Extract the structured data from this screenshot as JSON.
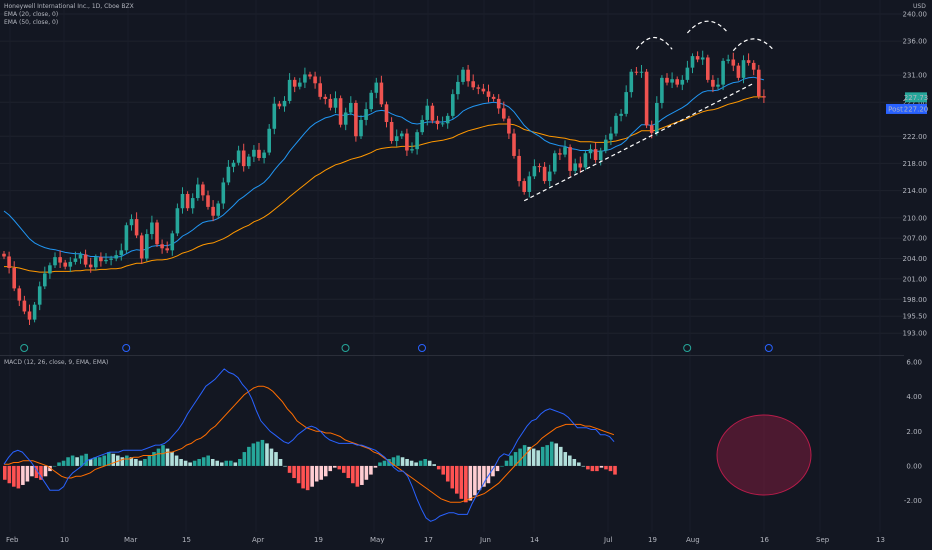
{
  "legend": {
    "title": "Honeywell International Inc., 1D, Cboe BZX",
    "ema_fast": "EMA (20, close, 0)",
    "ema_slow": "EMA (50, close, 0)",
    "macd": "MACD (12, 26, close, 9, EMA, EMA)"
  },
  "currency": "USD",
  "price_tags": {
    "last": "227.73",
    "post_label": "Post",
    "post": "227.20"
  },
  "colors": {
    "background": "#131722",
    "up": "#26a69a",
    "down": "#ef5350",
    "ema_fast": "#2196f3",
    "ema_slow": "#ff9800",
    "macd_line": "#2962ff",
    "signal_line": "#ff6d00",
    "hist_up_strong": "#26a69a",
    "hist_up_weak": "#b2dfdb",
    "hist_down_strong": "#ff5252",
    "hist_down_weak": "#ffcdd2",
    "highlight": "#b71c4a"
  },
  "chart_data": [
    {
      "type": "candlestick",
      "title": "Honeywell International Inc., 1D, Cboe BZX",
      "price_axis_ticks": [
        "240.00",
        "236.00",
        "231.00",
        "227.00",
        "222.00",
        "218.00",
        "214.00",
        "210.00",
        "207.00",
        "204.00",
        "201.00",
        "198.00",
        "195.50",
        "193.00"
      ],
      "ylim": [
        192,
        240
      ],
      "x_ticks": [
        "Feb",
        "10",
        "Mar",
        "15",
        "Apr",
        "19",
        "May",
        "17",
        "Jun",
        "14",
        "Jul",
        "19",
        "Aug",
        "16",
        "Sep",
        "13"
      ],
      "closes": [
        204.3,
        202.6,
        199.6,
        197.8,
        196.2,
        195.0,
        197.2,
        199.9,
        201.8,
        203.0,
        204.2,
        203.4,
        202.8,
        203.5,
        204.0,
        204.6,
        203.1,
        202.7,
        204.2,
        203.6,
        203.8,
        204.0,
        204.5,
        205.2,
        208.9,
        209.8,
        207.4,
        204.0,
        207.6,
        209.3,
        206.1,
        205.5,
        205.2,
        207.7,
        211.4,
        213.5,
        211.4,
        212.9,
        214.9,
        213.3,
        211.6,
        210.3,
        212.1,
        215.2,
        217.5,
        218.1,
        219.9,
        217.6,
        219.0,
        220.0,
        218.8,
        219.6,
        223.1,
        226.8,
        226.4,
        227.2,
        230.3,
        229.3,
        229.9,
        231.1,
        230.8,
        229.8,
        227.8,
        227.5,
        226.2,
        227.6,
        223.7,
        225.5,
        226.9,
        222.0,
        224.4,
        226.0,
        228.4,
        229.9,
        226.7,
        224.1,
        221.3,
        222.0,
        222.4,
        219.9,
        220.1,
        222.6,
        224.4,
        226.5,
        224.3,
        223.8,
        223.9,
        225.0,
        228.2,
        230.0,
        231.8,
        230.1,
        229.2,
        229.0,
        228.6,
        227.8,
        227.5,
        226.1,
        224.6,
        222.4,
        219.1,
        215.4,
        213.8,
        216.1,
        217.6,
        217.5,
        215.4,
        216.8,
        219.5,
        219.3,
        220.4,
        216.9,
        218.0,
        217.4,
        219.5,
        220.1,
        218.5,
        219.9,
        221.5,
        222.4,
        225.0,
        225.3,
        228.5,
        231.5,
        231.4,
        231.5,
        223.6,
        222.5,
        226.9,
        230.6,
        229.9,
        230.4,
        229.6,
        230.3,
        232.1,
        233.8,
        233.3,
        233.6,
        230.3,
        229.3,
        229.6,
        233.1,
        233.3,
        232.4,
        230.6,
        233.2,
        232.8,
        231.8,
        227.9,
        227.7
      ],
      "ema_20": [
        211.0,
        210.4,
        209.6,
        208.7,
        207.8,
        206.9,
        206.3,
        205.9,
        205.6,
        205.4,
        205.3,
        205.1,
        204.9,
        204.8,
        204.7,
        204.7,
        204.5,
        204.3,
        204.3,
        204.2,
        204.2,
        204.2,
        204.2,
        204.3,
        204.7,
        205.1,
        205.3,
        205.2,
        205.4,
        205.8,
        205.9,
        205.9,
        205.9,
        206.1,
        206.6,
        207.3,
        207.7,
        208.2,
        208.8,
        209.3,
        209.5,
        209.6,
        209.9,
        210.4,
        211.1,
        211.8,
        212.6,
        213.1,
        213.7,
        214.3,
        214.7,
        215.2,
        216.0,
        217.0,
        217.9,
        218.7,
        219.8,
        220.7,
        221.6,
        222.5,
        223.3,
        223.9,
        224.3,
        224.7,
        224.9,
        225.2,
        225.1,
        225.1,
        225.3,
        225.0,
        224.9,
        225.0,
        225.3,
        225.7,
        225.8,
        225.7,
        225.3,
        225.0,
        224.8,
        224.3,
        223.9,
        223.8,
        223.9,
        224.1,
        224.1,
        224.1,
        224.1,
        224.2,
        224.5,
        225.0,
        225.7,
        226.1,
        226.4,
        226.6,
        226.8,
        226.9,
        227.0,
        226.9,
        226.7,
        226.3,
        225.6,
        224.6,
        223.6,
        222.9,
        222.4,
        222.0,
        221.4,
        221.0,
        220.8,
        220.6,
        220.5,
        220.2,
        220.1,
        219.9,
        219.9,
        219.9,
        219.8,
        219.8,
        219.9,
        220.1,
        220.5,
        220.8,
        221.4,
        222.3,
        223.0,
        223.7,
        223.7,
        223.6,
        223.9,
        224.5,
        225.0,
        225.4,
        225.8,
        226.2,
        226.7,
        227.4,
        228.0,
        228.5,
        228.7,
        228.7,
        228.8,
        229.2,
        229.6,
        229.9,
        230.0,
        230.4,
        230.6,
        230.7,
        230.5,
        230.3
      ],
      "ema_50": [
        202.8,
        202.8,
        202.7,
        202.6,
        202.4,
        202.2,
        202.1,
        202.0,
        202.0,
        202.0,
        202.1,
        202.1,
        202.1,
        202.1,
        202.2,
        202.2,
        202.3,
        202.3,
        202.3,
        202.4,
        202.4,
        202.5,
        202.5,
        202.6,
        202.9,
        203.1,
        203.3,
        203.3,
        203.5,
        203.7,
        203.8,
        203.8,
        203.9,
        204.1,
        204.4,
        204.8,
        205.0,
        205.3,
        205.7,
        206.0,
        206.2,
        206.3,
        206.6,
        206.9,
        207.3,
        207.8,
        208.2,
        208.6,
        208.9,
        209.4,
        209.7,
        210.1,
        210.6,
        211.2,
        211.8,
        212.4,
        213.1,
        213.7,
        214.3,
        214.9,
        215.5,
        216.1,
        216.5,
        217.0,
        217.4,
        217.8,
        218.0,
        218.3,
        218.6,
        218.8,
        219.0,
        219.3,
        219.6,
        220.0,
        220.2,
        220.3,
        220.4,
        220.4,
        220.5,
        220.5,
        220.5,
        220.6,
        220.8,
        221.0,
        221.2,
        221.3,
        221.4,
        221.6,
        221.8,
        222.2,
        222.5,
        222.8,
        223.0,
        223.2,
        223.4,
        223.6,
        223.7,
        223.8,
        223.8,
        223.8,
        223.7,
        223.4,
        223.0,
        222.8,
        222.6,
        222.4,
        222.2,
        222.0,
        221.9,
        221.8,
        221.7,
        221.5,
        221.4,
        221.2,
        221.2,
        221.2,
        221.1,
        221.1,
        221.1,
        221.2,
        221.3,
        221.5,
        221.7,
        222.1,
        222.4,
        222.8,
        222.8,
        222.8,
        222.9,
        223.2,
        223.5,
        223.8,
        224.1,
        224.3,
        224.6,
        225.0,
        225.3,
        225.6,
        225.8,
        225.9,
        226.1,
        226.4,
        226.7,
        226.9,
        227.1,
        227.4,
        227.6,
        227.8,
        227.8,
        227.8
      ],
      "macd_ticks": [
        "6.00",
        "4.00",
        "2.00",
        "0.00",
        "-2.00"
      ],
      "macd_ylim": [
        -3.7,
        6.0
      ],
      "macd": [
        0.1,
        0.5,
        0.8,
        0.9,
        0.8,
        0.5,
        0.2,
        -0.2,
        -0.6,
        -1.0,
        -1.4,
        -1.4,
        -1.4,
        -1.2,
        -0.7,
        -0.4,
        -0.2,
        0.0,
        0.3,
        0.4,
        0.5,
        0.6,
        0.7,
        0.8,
        0.8,
        0.8,
        0.9,
        0.9,
        0.9,
        0.9,
        0.9,
        1.0,
        1.1,
        1.2,
        1.2,
        1.3,
        1.5,
        1.8,
        2.1,
        2.5,
        3.0,
        3.4,
        3.8,
        4.2,
        4.6,
        4.8,
        5.0,
        5.3,
        5.6,
        5.4,
        5.3,
        5.1,
        4.7,
        4.4,
        3.9,
        3.2,
        2.6,
        2.3,
        2.0,
        1.8,
        1.6,
        1.4,
        1.3,
        1.5,
        1.8,
        2.0,
        2.2,
        2.3,
        2.2,
        2.0,
        1.7,
        1.5,
        1.4,
        1.3,
        1.3,
        1.3,
        1.3,
        1.2,
        1.2,
        1.1,
        1.0,
        0.9,
        0.7,
        0.5,
        0.2,
        -0.1,
        -0.3,
        -0.3,
        -0.6,
        -1.2,
        -1.9,
        -2.5,
        -3.0,
        -3.2,
        -3.1,
        -2.9,
        -2.8,
        -2.7,
        -2.7,
        -2.8,
        -2.8,
        -2.8,
        -2.2,
        -1.7,
        -1.3,
        -0.8,
        -0.4,
        0.0,
        0.5,
        0.7,
        0.6,
        1.0,
        1.5,
        1.9,
        2.3,
        2.6,
        2.7,
        3.0,
        3.2,
        3.3,
        3.2,
        3.1,
        3.0,
        2.8,
        2.5,
        2.2,
        2.2,
        2.2,
        2.1,
        2.1,
        1.8,
        1.8,
        1.7,
        1.4
      ],
      "signal": [
        0.1,
        0.1,
        0.2,
        0.2,
        0.3,
        0.3,
        0.3,
        0.2,
        0.1,
        0.0,
        -0.2,
        -0.4,
        -0.6,
        -0.7,
        -0.7,
        -0.6,
        -0.6,
        -0.5,
        -0.4,
        -0.2,
        -0.1,
        0.0,
        0.1,
        0.2,
        0.3,
        0.4,
        0.4,
        0.5,
        0.5,
        0.6,
        0.6,
        0.6,
        0.7,
        0.7,
        0.8,
        0.8,
        0.9,
        1.0,
        1.2,
        1.3,
        1.5,
        1.6,
        1.8,
        2.1,
        2.3,
        2.6,
        2.9,
        3.2,
        3.5,
        3.8,
        4.1,
        4.3,
        4.5,
        4.6,
        4.6,
        4.5,
        4.3,
        4.0,
        3.7,
        3.3,
        3.0,
        2.6,
        2.4,
        2.2,
        2.1,
        2.0,
        2.0,
        1.9,
        1.9,
        1.8,
        1.7,
        1.5,
        1.4,
        1.3,
        1.2,
        1.1,
        1.0,
        0.8,
        0.7,
        0.5,
        0.3,
        0.1,
        -0.1,
        -0.3,
        -0.5,
        -0.7,
        -0.9,
        -1.1,
        -1.3,
        -1.5,
        -1.7,
        -1.9,
        -2.0,
        -2.1,
        -2.1,
        -2.1,
        -2.0,
        -1.9,
        -1.8,
        -1.7,
        -1.6,
        -1.4,
        -1.2,
        -1.0,
        -0.7,
        -0.4,
        -0.1,
        0.2,
        0.5,
        0.8,
        1.1,
        1.3,
        1.6,
        1.8,
        2.0,
        2.2,
        2.3,
        2.4,
        2.4,
        2.4,
        2.4,
        2.3,
        2.3,
        2.2,
        2.1,
        2.0,
        1.9,
        1.8
      ],
      "histogram": [
        -0.8,
        -1.0,
        -1.2,
        -1.3,
        -1.1,
        -0.9,
        -0.6,
        -0.7,
        -0.8,
        -0.6,
        -0.3,
        0.0,
        0.2,
        0.3,
        0.5,
        0.6,
        0.5,
        0.6,
        0.7,
        0.4,
        0.5,
        0.5,
        0.6,
        0.8,
        0.7,
        0.6,
        0.5,
        0.6,
        0.5,
        0.4,
        0.3,
        0.4,
        0.6,
        0.8,
        1.0,
        1.2,
        1.0,
        0.8,
        0.6,
        0.4,
        0.3,
        0.2,
        0.3,
        0.4,
        0.5,
        0.6,
        0.4,
        0.3,
        0.2,
        0.3,
        0.3,
        0.2,
        0.4,
        0.8,
        1.1,
        1.3,
        1.4,
        1.5,
        1.3,
        1.0,
        0.8,
        0.4,
        0.0,
        -0.4,
        -0.7,
        -1.0,
        -1.3,
        -1.4,
        -1.2,
        -0.9,
        -0.8,
        -0.6,
        -0.3,
        -0.1,
        -0.2,
        -0.4,
        -0.7,
        -1.0,
        -1.2,
        -1.1,
        -0.8,
        -0.5,
        -0.1,
        0.2,
        0.3,
        0.4,
        0.5,
        0.6,
        0.5,
        0.4,
        0.3,
        0.2,
        0.3,
        0.4,
        0.3,
        0.1,
        -0.2,
        -0.5,
        -0.9,
        -1.3,
        -1.6,
        -1.9,
        -2.1,
        -2.0,
        -1.7,
        -1.4,
        -1.2,
        -1.0,
        -0.6,
        -0.3,
        0.0,
        0.3,
        0.6,
        0.8,
        1.0,
        1.2,
        1.1,
        1.0,
        0.9,
        1.1,
        1.2,
        1.4,
        1.3,
        1.1,
        0.8,
        0.6,
        0.4,
        0.2,
        0.0,
        -0.2,
        -0.3,
        -0.3,
        -0.1,
        -0.2,
        -0.3,
        -0.5
      ]
    }
  ]
}
